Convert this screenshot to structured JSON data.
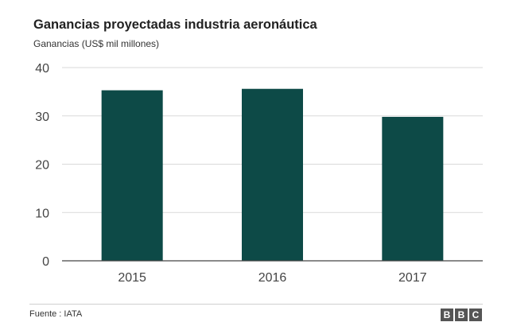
{
  "chart_data": {
    "type": "bar",
    "title": "Ganancias proyectadas industria aeronáutica",
    "ylabel": "Ganancias (US$ mil millones)",
    "categories": [
      "2015",
      "2016",
      "2017"
    ],
    "values": [
      35.3,
      35.6,
      29.8
    ],
    "ylim": [
      0,
      40
    ],
    "yticks": [
      0,
      10,
      20,
      30,
      40
    ],
    "grid": true,
    "bar_color": "#0d4a47"
  },
  "footer": {
    "source": "Fuente : IATA",
    "logo_letters": [
      "B",
      "B",
      "C"
    ]
  }
}
